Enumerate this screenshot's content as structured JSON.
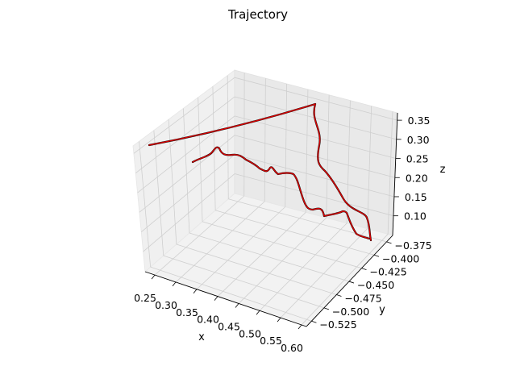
{
  "chart_data": {
    "type": "line",
    "projection": "3d",
    "title": "Trajectory",
    "xlabel": "x",
    "ylabel": "y",
    "zlabel": "z",
    "x_ticks": [
      "0.25",
      "0.30",
      "0.35",
      "0.40",
      "0.45",
      "0.50",
      "0.55",
      "0.60"
    ],
    "y_ticks": [
      "−0.375",
      "−0.400",
      "−0.425",
      "−0.450",
      "−0.475",
      "−0.500",
      "−0.525"
    ],
    "z_ticks": [
      "0.35",
      "0.30",
      "0.25",
      "0.20",
      "0.15",
      "0.10"
    ],
    "xlim": [
      0.22,
      0.6
    ],
    "ylim": [
      -0.535,
      -0.365
    ],
    "zlim": [
      0.06,
      0.37
    ],
    "grid": true,
    "series": [
      {
        "color": "#000000",
        "linewidth": 2.2
      },
      {
        "color": "#dd0000",
        "linewidth": 1.4
      }
    ]
  }
}
